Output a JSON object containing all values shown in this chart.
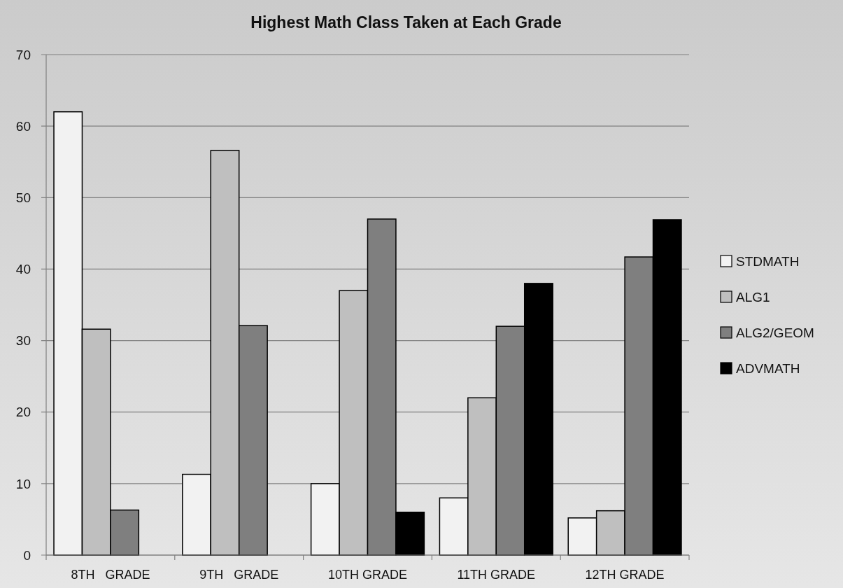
{
  "chart_data": {
    "type": "bar",
    "title": "Highest Math Class Taken at Each Grade",
    "categories": [
      "8TH   GRADE",
      "9TH   GRADE",
      "10TH GRADE",
      "11TH GRADE",
      "12TH GRADE"
    ],
    "series": [
      {
        "name": "STDMATH",
        "color": "#f2f2f2",
        "values": [
          62,
          11.3,
          10,
          8,
          5.2
        ]
      },
      {
        "name": "ALG1",
        "color": "#bfbfbf",
        "values": [
          31.6,
          56.6,
          37,
          22,
          6.2
        ]
      },
      {
        "name": "ALG2/GEOM",
        "color": "#7f7f7f",
        "values": [
          6.3,
          32.1,
          47,
          32,
          41.7
        ]
      },
      {
        "name": "ADVMATH",
        "color": "#000000",
        "values": [
          null,
          null,
          6,
          38,
          46.9
        ]
      }
    ],
    "ylim": [
      0,
      70
    ],
    "yticks": [
      0,
      10,
      20,
      30,
      40,
      50,
      60,
      70
    ],
    "grid": "y",
    "legend": "right"
  }
}
